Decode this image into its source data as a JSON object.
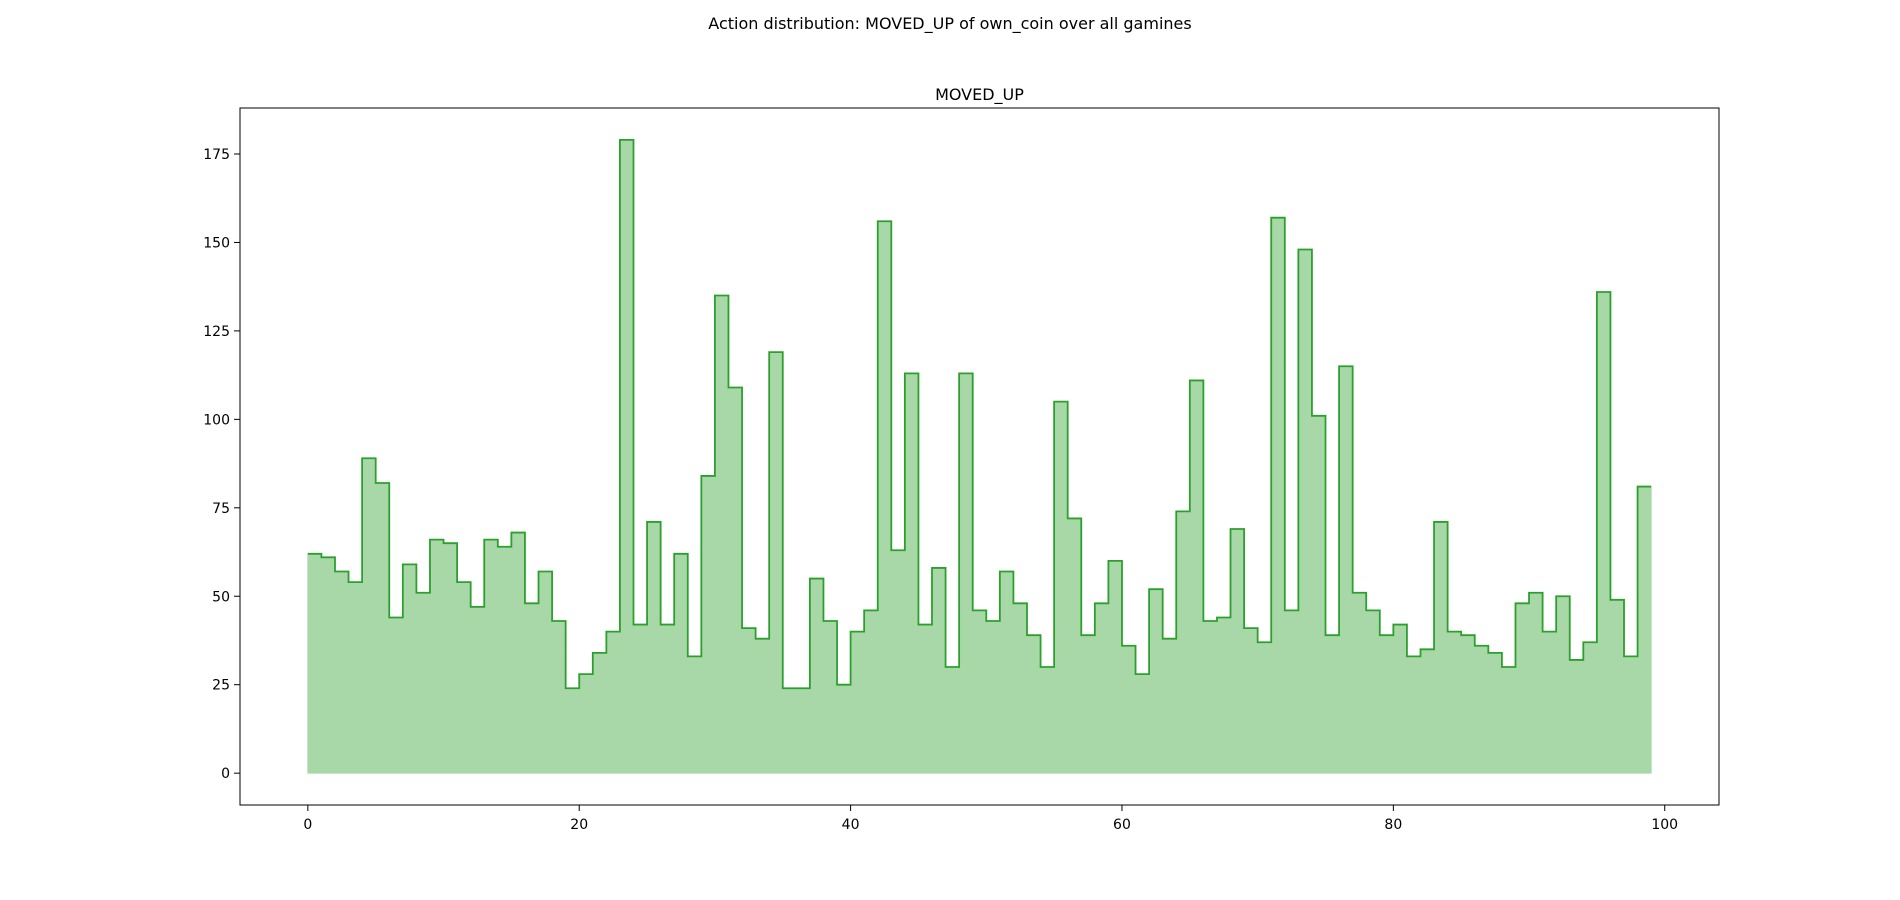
{
  "figure": {
    "suptitle": "Action distribution: MOVED_UP of own_coin over all gamines"
  },
  "chart_data": {
    "type": "area",
    "style": "step-filled histogram",
    "title": "MOVED_UP",
    "xlabel": "",
    "ylabel": "",
    "xlim": [
      -5,
      104
    ],
    "ylim": [
      -9,
      188
    ],
    "x_ticks": [
      0,
      20,
      40,
      60,
      80,
      100
    ],
    "y_ticks": [
      0,
      25,
      50,
      75,
      100,
      125,
      150,
      175
    ],
    "grid": false,
    "fill_color": "#a8d8a8",
    "line_color": "#2ca02c",
    "x": [
      0,
      1,
      2,
      3,
      4,
      5,
      6,
      7,
      8,
      9,
      10,
      11,
      12,
      13,
      14,
      15,
      16,
      17,
      18,
      19,
      20,
      21,
      22,
      23,
      24,
      25,
      26,
      27,
      28,
      29,
      30,
      31,
      32,
      33,
      34,
      35,
      36,
      37,
      38,
      39,
      40,
      41,
      42,
      43,
      44,
      45,
      46,
      47,
      48,
      49,
      50,
      51,
      52,
      53,
      54,
      55,
      56,
      57,
      58,
      59,
      60,
      61,
      62,
      63,
      64,
      65,
      66,
      67,
      68,
      69,
      70,
      71,
      72,
      73,
      74,
      75,
      76,
      77,
      78,
      79,
      80,
      81,
      82,
      83,
      84,
      85,
      86,
      87,
      88,
      89,
      90,
      91,
      92,
      93,
      94,
      95,
      96,
      97,
      98
    ],
    "values": [
      62,
      61,
      57,
      54,
      89,
      82,
      44,
      59,
      51,
      66,
      65,
      54,
      47,
      66,
      64,
      68,
      48,
      57,
      43,
      24,
      28,
      34,
      40,
      179,
      42,
      71,
      42,
      62,
      33,
      84,
      135,
      109,
      41,
      38,
      119,
      24,
      24,
      55,
      43,
      25,
      40,
      46,
      156,
      63,
      113,
      42,
      58,
      30,
      113,
      46,
      43,
      57,
      48,
      39,
      30,
      105,
      72,
      39,
      48,
      60,
      36,
      28,
      52,
      38,
      74,
      111,
      43,
      44,
      69,
      41,
      37,
      157,
      46,
      148,
      101,
      39,
      115,
      51,
      46,
      39,
      42,
      33,
      35,
      71,
      40,
      39,
      36,
      34,
      30,
      48,
      51,
      40,
      50,
      32,
      37,
      136,
      49,
      33,
      81
    ],
    "x_end": 99
  }
}
